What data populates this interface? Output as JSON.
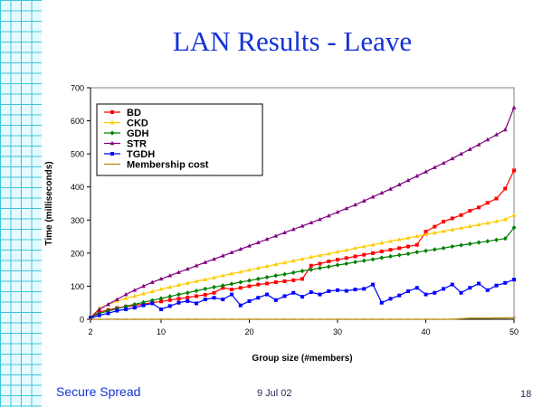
{
  "slide": {
    "title": "LAN Results - Leave",
    "footer_left": "Secure Spread",
    "footer_date": "9 Jul 02",
    "page_number": "18"
  },
  "chart_data": {
    "type": "line",
    "xlabel": "Group size (#members)",
    "ylabel": "Time (milliseconds)",
    "xlim": [
      2,
      50
    ],
    "ylim": [
      0,
      700
    ],
    "x_ticks": [
      2,
      10,
      20,
      30,
      40,
      50
    ],
    "y_ticks": [
      0,
      100,
      200,
      300,
      400,
      500,
      600,
      700
    ],
    "grid": false,
    "legend_position": "top-left",
    "x": [
      2,
      3,
      4,
      5,
      6,
      7,
      8,
      9,
      10,
      11,
      12,
      13,
      14,
      15,
      16,
      17,
      18,
      19,
      20,
      21,
      22,
      23,
      24,
      25,
      26,
      27,
      28,
      29,
      30,
      31,
      32,
      33,
      34,
      35,
      36,
      37,
      38,
      39,
      40,
      41,
      42,
      43,
      44,
      45,
      46,
      47,
      48,
      49,
      50
    ],
    "series": [
      {
        "name": "BD",
        "color": "#ff0000",
        "marker": "square",
        "values": [
          5,
          22,
          28,
          34,
          38,
          42,
          46,
          50,
          54,
          58,
          62,
          66,
          70,
          74,
          80,
          95,
          90,
          95,
          100,
          105,
          108,
          112,
          115,
          118,
          122,
          162,
          168,
          175,
          180,
          185,
          190,
          195,
          200,
          205,
          210,
          215,
          220,
          225,
          265,
          280,
          295,
          305,
          315,
          328,
          338,
          352,
          365,
          395,
          450
        ]
      },
      {
        "name": "CKD",
        "color": "#ffcc00",
        "marker": "triangle",
        "values": [
          5,
          33,
          45,
          55,
          63,
          70,
          77,
          84,
          91,
          97,
          103,
          109,
          115,
          120,
          126,
          132,
          138,
          143,
          149,
          155,
          160,
          166,
          171,
          177,
          182,
          188,
          193,
          198,
          204,
          209,
          215,
          220,
          225,
          231,
          236,
          241,
          246,
          251,
          256,
          261,
          266,
          271,
          276,
          281,
          286,
          291,
          296,
          302,
          315
        ]
      },
      {
        "name": "GDH",
        "color": "#008000",
        "marker": "diamond",
        "values": [
          5,
          18,
          25,
          32,
          39,
          45,
          51,
          57,
          63,
          69,
          75,
          80,
          86,
          92,
          97,
          102,
          107,
          112,
          117,
          122,
          127,
          132,
          136,
          141,
          146,
          150,
          155,
          159,
          164,
          168,
          173,
          177,
          181,
          186,
          190,
          194,
          198,
          203,
          207,
          211,
          215,
          220,
          224,
          228,
          232,
          236,
          240,
          244,
          277
        ]
      },
      {
        "name": "STR",
        "color": "#800080",
        "marker": "triangle",
        "values": [
          5,
          30,
          45,
          60,
          75,
          88,
          100,
          112,
          122,
          132,
          142,
          152,
          162,
          172,
          182,
          192,
          202,
          212,
          222,
          232,
          242,
          252,
          262,
          272,
          282,
          292,
          302,
          313,
          324,
          335,
          346,
          358,
          370,
          382,
          394,
          407,
          420,
          433,
          446,
          459,
          472,
          486,
          500,
          514,
          528,
          543,
          558,
          573,
          640
        ]
      },
      {
        "name": "TGDH",
        "color": "#0000ff",
        "marker": "square",
        "values": [
          3,
          12,
          18,
          26,
          30,
          35,
          42,
          48,
          30,
          40,
          50,
          55,
          48,
          60,
          65,
          60,
          75,
          42,
          55,
          65,
          75,
          58,
          70,
          80,
          68,
          82,
          75,
          85,
          88,
          86,
          90,
          92,
          105,
          50,
          62,
          72,
          85,
          95,
          75,
          80,
          92,
          105,
          80,
          95,
          108,
          88,
          102,
          110,
          120
        ]
      },
      {
        "name": "Membership cost",
        "color": "#b8860b",
        "marker": "dash",
        "values": [
          0,
          0,
          0,
          0,
          0,
          0,
          0,
          0,
          0,
          0,
          0,
          0,
          0,
          0,
          0,
          0,
          0,
          0,
          0,
          0,
          0,
          0,
          0,
          0,
          0,
          0,
          0,
          0,
          0,
          0,
          0,
          0,
          0,
          0,
          0,
          0,
          0,
          0,
          0,
          0,
          0,
          0,
          2,
          3,
          3,
          3,
          4,
          4,
          5
        ]
      }
    ]
  }
}
